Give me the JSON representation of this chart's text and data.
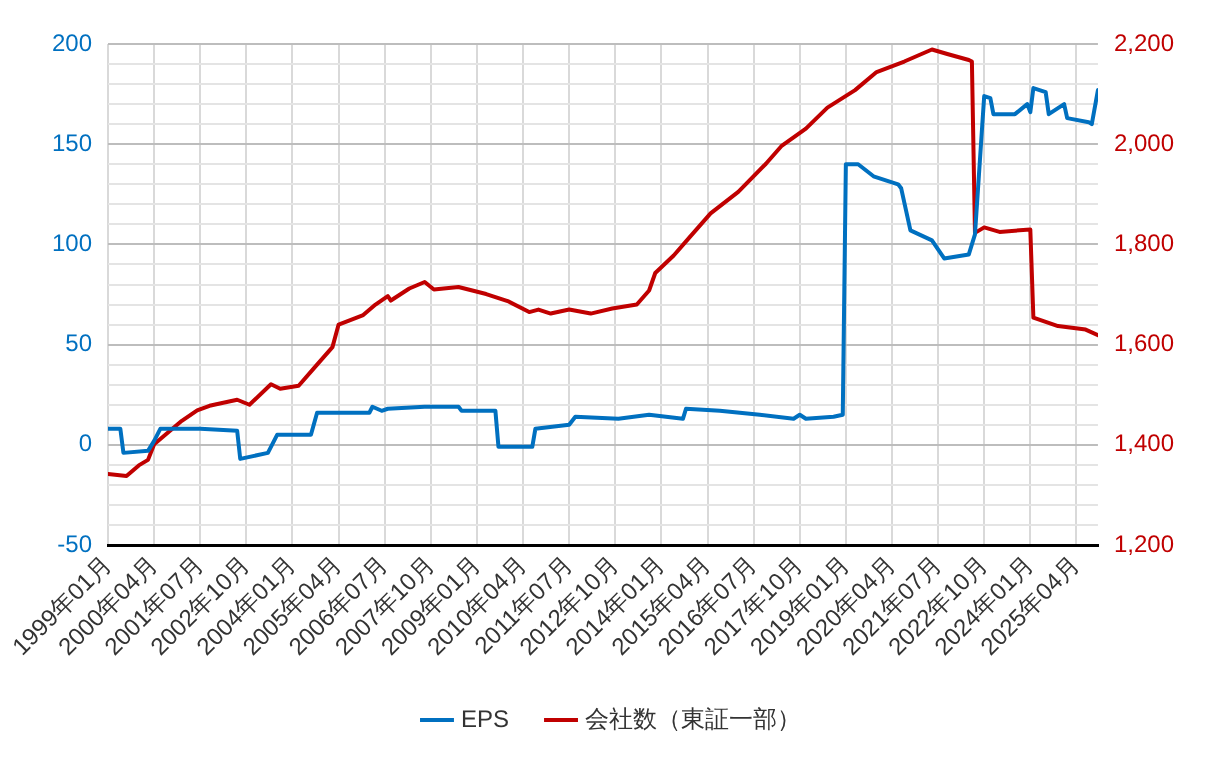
{
  "chart_data": {
    "type": "line",
    "legend": "bottom",
    "grid": true,
    "marker": "none",
    "line_style": "solid",
    "xlim": [
      "1999-01",
      "2025-11"
    ],
    "xticks": [
      {
        "value": "1999-01",
        "label": "1999年01月"
      },
      {
        "value": "2000-04",
        "label": "2000年04月"
      },
      {
        "value": "2001-07",
        "label": "2001年07月"
      },
      {
        "value": "2002-10",
        "label": "2002年10月"
      },
      {
        "value": "2004-01",
        "label": "2004年01月"
      },
      {
        "value": "2005-04",
        "label": "2005年04月"
      },
      {
        "value": "2006-07",
        "label": "2006年07月"
      },
      {
        "value": "2007-10",
        "label": "2007年10月"
      },
      {
        "value": "2009-01",
        "label": "2009年01月"
      },
      {
        "value": "2010-04",
        "label": "2010年04月"
      },
      {
        "value": "2011-07",
        "label": "2011年07月"
      },
      {
        "value": "2012-10",
        "label": "2012年10月"
      },
      {
        "value": "2014-01",
        "label": "2014年01月"
      },
      {
        "value": "2015-04",
        "label": "2015年04月"
      },
      {
        "value": "2016-07",
        "label": "2016年07月"
      },
      {
        "value": "2017-10",
        "label": "2017年10月"
      },
      {
        "value": "2019-01",
        "label": "2019年01月"
      },
      {
        "value": "2020-04",
        "label": "2020年04月"
      },
      {
        "value": "2021-07",
        "label": "2021年07月"
      },
      {
        "value": "2022-10",
        "label": "2022年10月"
      },
      {
        "value": "2024-01",
        "label": "2024年01月"
      },
      {
        "value": "2025-04",
        "label": "2025年04月"
      }
    ],
    "ylim": [
      -50,
      200
    ],
    "yticks": [
      -50,
      {
        "value": -40,
        "label": null
      },
      {
        "value": -30,
        "label": null
      },
      {
        "value": -20,
        "label": null
      },
      {
        "value": -10,
        "label": null
      },
      0,
      {
        "value": 10,
        "label": null
      },
      {
        "value": 20,
        "label": null
      },
      {
        "value": 30,
        "label": null
      },
      {
        "value": 40,
        "label": null
      },
      50,
      {
        "value": 60,
        "label": null
      },
      {
        "value": 70,
        "label": null
      },
      {
        "value": 80,
        "label": null
      },
      {
        "value": 90,
        "label": null
      },
      100,
      {
        "value": 110,
        "label": null
      },
      {
        "value": 120,
        "label": null
      },
      {
        "value": 130,
        "label": null
      },
      {
        "value": 140,
        "label": null
      },
      150,
      {
        "value": 160,
        "label": null
      },
      {
        "value": 170,
        "label": null
      },
      {
        "value": 180,
        "label": null
      },
      {
        "value": 190,
        "label": null
      },
      200
    ],
    "y2lim": [
      1200,
      2200
    ],
    "y2ticks": [
      {
        "value": 1200,
        "label": "1,200"
      },
      {
        "value": 1400,
        "label": "1,400"
      },
      {
        "value": 1600,
        "label": "1,600"
      },
      {
        "value": 1800,
        "label": "1,800"
      },
      {
        "value": 2000,
        "label": "2,000"
      },
      {
        "value": 2200,
        "label": "2,200"
      }
    ],
    "series": [
      {
        "name": "EPS",
        "color": "#0070c0",
        "x": [
          "1999-01",
          "1999-05",
          "1999-06",
          "2000-02",
          "2000-04",
          "2000-06",
          "2001-07",
          "2002-07",
          "2002-08",
          "2003-05",
          "2003-08",
          "2004-07",
          "2004-09",
          "2006-02",
          "2006-03",
          "2006-06",
          "2006-08",
          "2007-08",
          "2008-07",
          "2008-08",
          "2009-07",
          "2009-08",
          "2010-07",
          "2010-08",
          "2011-07",
          "2011-09",
          "2012-11",
          "2013-09",
          "2014-08",
          "2014-09",
          "2015-08",
          "2016-09",
          "2017-08",
          "2017-10",
          "2017-12",
          "2018-09",
          "2018-12",
          "2019-01",
          "2019-05",
          "2019-10",
          "2020-06",
          "2020-07",
          "2020-10",
          "2021-05",
          "2021-09",
          "2022-05",
          "2022-07",
          "2022-10",
          "2022-12",
          "2023-01",
          "2023-08",
          "2023-12",
          "2024-01",
          "2024-02",
          "2024-06",
          "2024-07",
          "2024-12",
          "2025-01",
          "2025-08",
          "2025-09",
          "2025-11"
        ],
        "values": [
          8,
          8,
          -4,
          -3,
          2,
          8,
          8,
          7,
          -7,
          -4,
          5,
          5,
          16,
          16,
          19,
          17,
          18,
          19,
          19,
          17,
          17,
          -1,
          -1,
          8,
          10,
          14,
          13,
          15,
          13,
          18,
          17,
          15,
          13,
          15,
          13,
          14,
          15,
          140,
          140,
          134,
          130,
          128,
          107,
          102,
          93,
          95,
          105,
          174,
          173,
          165,
          165,
          170,
          166,
          178,
          176,
          165,
          170,
          163,
          161,
          160,
          177
        ]
      },
      {
        "name": "会社数（東証一部）",
        "color": "#c00000",
        "axis": "y2",
        "x": [
          "1999-01",
          "1999-07",
          "1999-11",
          "2000-02",
          "2000-04",
          "2001-01",
          "2001-06",
          "2001-10",
          "2002-07",
          "2002-11",
          "2003-06",
          "2003-09",
          "2004-03",
          "2004-08",
          "2005-02",
          "2005-04",
          "2005-12",
          "2006-04",
          "2006-08",
          "2006-09",
          "2007-03",
          "2007-08",
          "2007-11",
          "2008-07",
          "2009-04",
          "2009-11",
          "2010-06",
          "2010-09",
          "2011-01",
          "2011-07",
          "2012-02",
          "2012-09",
          "2013-05",
          "2013-09",
          "2013-11",
          "2014-05",
          "2014-10",
          "2015-05",
          "2016-02",
          "2016-11",
          "2017-04",
          "2017-12",
          "2018-07",
          "2019-04",
          "2019-11",
          "2020-08",
          "2021-05",
          "2021-10",
          "2022-05",
          "2022-06",
          "2022-07",
          "2022-10",
          "2023-03",
          "2024-01",
          "2024-02",
          "2024-10",
          "2025-07",
          "2025-11"
        ],
        "values": [
          1342,
          1338,
          1359,
          1370,
          1401,
          1448,
          1469,
          1478,
          1490,
          1480,
          1521,
          1512,
          1518,
          1553,
          1595,
          1640,
          1659,
          1680,
          1697,
          1688,
          1712,
          1725,
          1710,
          1715,
          1701,
          1687,
          1665,
          1670,
          1662,
          1670,
          1662,
          1672,
          1680,
          1708,
          1743,
          1778,
          1813,
          1862,
          1905,
          1961,
          1996,
          2031,
          2073,
          2108,
          2144,
          2165,
          2189,
          2180,
          2168,
          2165,
          1823,
          1834,
          1825,
          1830,
          1654,
          1637,
          1630,
          1619
        ]
      }
    ]
  }
}
